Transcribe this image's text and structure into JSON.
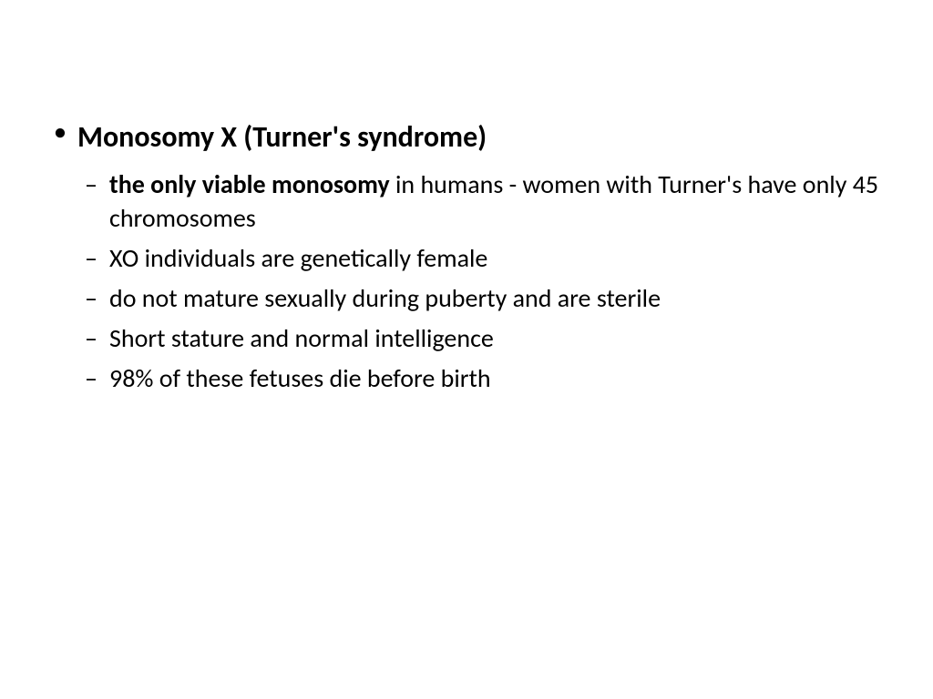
{
  "slide": {
    "main_heading": "Monosomy X (Turner's syndrome)",
    "sub_items": [
      {
        "bold_part": "the only viable monosomy",
        "normal_part": " in humans - women with Turner's have only 45 chromosomes"
      },
      {
        "bold_part": "",
        "normal_part": "XO individuals are genetically female"
      },
      {
        "bold_part": "",
        "normal_part": "do not mature sexually during puberty and are sterile"
      },
      {
        "bold_part": "",
        "normal_part": "Short stature and normal intelligence"
      },
      {
        "bold_part": "",
        "normal_part": "98% of these fetuses die before birth"
      }
    ]
  },
  "styling": {
    "background_color": "#ffffff",
    "text_color": "#000000",
    "main_fontsize": 32,
    "sub_fontsize": 28,
    "font_family": "Calibri"
  }
}
